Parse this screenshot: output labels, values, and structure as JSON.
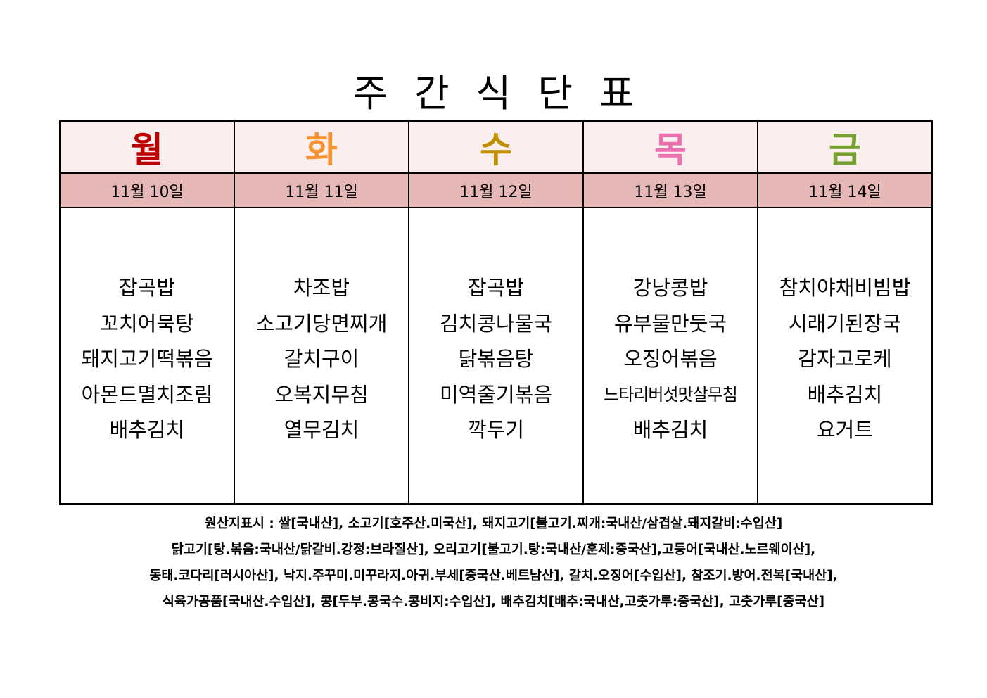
{
  "title": "주간식단표",
  "days": [
    {
      "label": "월",
      "color": "#c00000",
      "date": "11월 10일",
      "menu": [
        "잡곡밥",
        "꼬치어묵탕",
        "돼지고기떡볶음",
        "아몬드멸치조림",
        "배추김치"
      ]
    },
    {
      "label": "화",
      "color": "#f59232",
      "date": "11월 11일",
      "menu": [
        "차조밥",
        "소고기당면찌개",
        "갈치구이",
        "오복지무침",
        "열무김치"
      ]
    },
    {
      "label": "수",
      "color": "#bf9000",
      "date": "11월 12일",
      "menu": [
        "잡곡밥",
        "김치콩나물국",
        "닭볶음탕",
        "미역줄기볶음",
        "깍두기"
      ]
    },
    {
      "label": "목",
      "color": "#ec6fb0",
      "date": "11월 13일",
      "menu": [
        "강낭콩밥",
        "유부물만둣국",
        "오징어볶음",
        "느타리버섯맛살무침",
        "배추김치"
      ]
    },
    {
      "label": "금",
      "color": "#77a032",
      "date": "11월 14일",
      "menu": [
        "참치야채비빔밥",
        "시래기된장국",
        "감자고로케",
        "배추김치",
        "요거트"
      ]
    }
  ],
  "header_bg": "#fbeeee",
  "date_bg": "#e6b8b7",
  "footer": [
    "원산지표시 : 쌀[국내산], 소고기[호주산.미국산], 돼지고기[불고기.찌개:국내산/삼겹살.돼지갈비:수입산]",
    "닭고기[탕.볶음:국내산/닭갈비.강정:브라질산], 오리고기[불고기.탕:국내산/훈제:중국산],고등어[국내산.노르웨이산],",
    "동태.코다리[러시아산], 낙지.주꾸미.미꾸라지.아귀.부세[중국산.베트남산], 갈치.오징어[수입산], 참조기.방어.전복[국내산],",
    "식육가공품[국내산.수입산], 콩[두부.콩국수.콩비지:수입산], 배추김치[배추:국내산,고춧가루:중국산], 고춧가루[중국산]"
  ]
}
